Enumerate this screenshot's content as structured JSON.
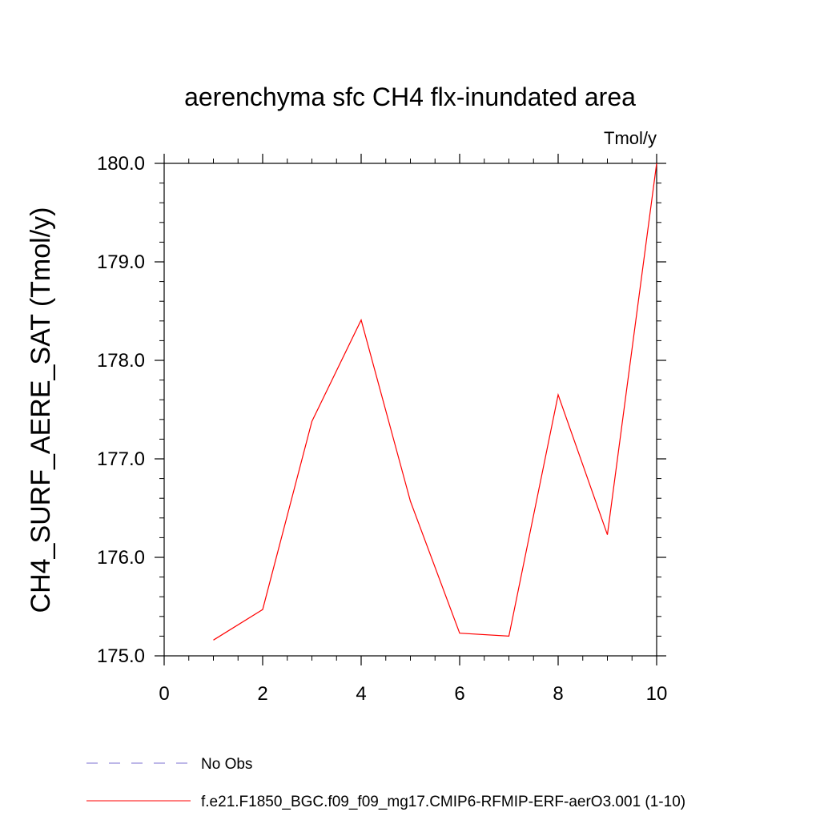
{
  "chart_data": {
    "type": "line",
    "title": "aerenchyma sfc CH4 flx-inundated area",
    "units_label": "Tmol/y",
    "xlabel": "",
    "ylabel": "CH4_SURF_AERE_SAT  (Tmol/y)",
    "xlim": [
      0,
      10
    ],
    "ylim": [
      175.0,
      180.0
    ],
    "x_ticks": [
      0,
      2,
      4,
      6,
      8,
      10
    ],
    "x_tick_labels": [
      "0",
      "2",
      "4",
      "6",
      "8",
      "10"
    ],
    "y_ticks": [
      175.0,
      176.0,
      177.0,
      178.0,
      179.0,
      180.0
    ],
    "y_tick_labels": [
      "175.0",
      "176.0",
      "177.0",
      "178.0",
      "179.0",
      "180.0"
    ],
    "grid": false,
    "legend_position": "bottom",
    "series": [
      {
        "name": "f.e21.F1850_BGC.f09_f09_mg17.CMIP6-RFMIP-ERF-aerO3.001 (1-10)",
        "color": "#ff0000",
        "dash": "solid",
        "x": [
          1,
          2,
          3,
          4,
          5,
          6,
          7,
          8,
          9,
          10
        ],
        "y": [
          175.16,
          175.47,
          177.38,
          178.41,
          176.57,
          175.23,
          175.2,
          177.65,
          176.23,
          180.0
        ]
      }
    ],
    "legend": [
      {
        "label": "No Obs",
        "color": "#7b6fd0",
        "dash": "dashed"
      },
      {
        "label": "f.e21.F1850_BGC.f09_f09_mg17.CMIP6-RFMIP-ERF-aerO3.001 (1-10)",
        "color": "#ff0000",
        "dash": "solid"
      }
    ]
  }
}
